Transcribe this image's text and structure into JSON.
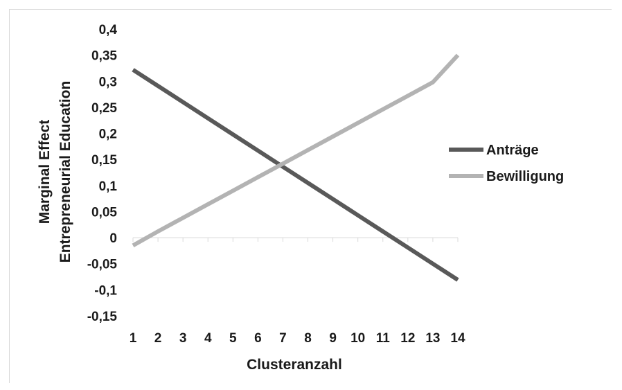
{
  "chart_data": {
    "type": "line",
    "title": "",
    "xlabel": "Clusteranzahl",
    "ylabel_lines": [
      "Marginal Effect",
      "Entrepreneurial Education"
    ],
    "categories": [
      1,
      2,
      3,
      4,
      5,
      6,
      7,
      8,
      9,
      10,
      11,
      12,
      13,
      14
    ],
    "x_tick_labels": [
      "1",
      "2",
      "3",
      "4",
      "5",
      "6",
      "7",
      "8",
      "9",
      "10",
      "11",
      "12",
      "13",
      "14"
    ],
    "y_ticks": [
      0.4,
      0.35,
      0.3,
      0.25,
      0.2,
      0.15,
      0.1,
      0.05,
      0,
      -0.05,
      -0.1,
      -0.15
    ],
    "y_tick_labels": [
      "0,4",
      "0,35",
      "0,3",
      "0,25",
      "0,2",
      "0,15",
      "0,1",
      "0,05",
      "0",
      "-0,05",
      "-0,1",
      "-0,15"
    ],
    "ylim": [
      -0.15,
      0.4
    ],
    "grid": false,
    "legend_position": "right",
    "series": [
      {
        "name": "Anträge",
        "color": "#595959",
        "values": [
          0.322,
          0.291,
          0.26,
          0.229,
          0.198,
          0.167,
          0.136,
          0.105,
          0.074,
          0.043,
          0.012,
          -0.019,
          -0.05,
          -0.081
        ]
      },
      {
        "name": "Bewilligung",
        "color": "#b3b3b3",
        "values": [
          -0.015,
          0.012,
          0.038,
          0.064,
          0.09,
          0.116,
          0.142,
          0.168,
          0.194,
          0.22,
          0.246,
          0.272,
          0.298,
          0.35
        ]
      }
    ]
  }
}
